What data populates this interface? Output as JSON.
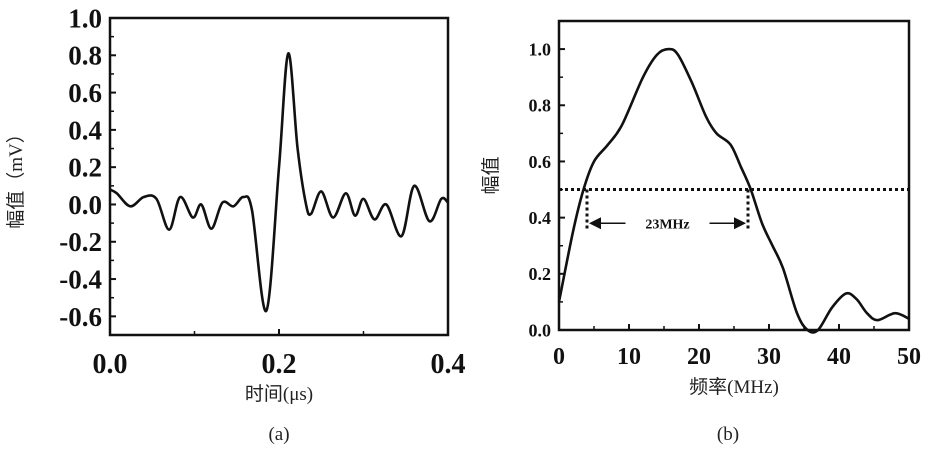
{
  "chart_data": [
    {
      "type": "line",
      "panel_label": "(a)",
      "xlabel": "时间(μs)",
      "ylabel": "幅值（mV）",
      "xlim": [
        0,
        0.4
      ],
      "ylim": [
        -0.7,
        1.0
      ],
      "xticks": [
        0.0,
        0.2,
        0.4
      ],
      "xtick_labels": [
        "0.0",
        "0.2",
        "0.4"
      ],
      "yticks": [
        1.0,
        0.8,
        0.6,
        0.4,
        0.2,
        0.0,
        -0.2,
        -0.4,
        -0.6
      ],
      "ytick_labels": [
        "1.0",
        "0.8",
        "0.6",
        "0.4",
        "0.2",
        "0.0",
        "-0.2",
        "-0.4",
        "-0.6"
      ],
      "grid": false,
      "series": [
        {
          "name": "signal",
          "x": [
            0,
            0.008,
            0.024,
            0.04,
            0.055,
            0.07,
            0.083,
            0.098,
            0.108,
            0.12,
            0.133,
            0.146,
            0.158,
            0.168,
            0.185,
            0.2,
            0.211,
            0.222,
            0.232,
            0.238,
            0.25,
            0.264,
            0.279,
            0.29,
            0.3,
            0.313,
            0.327,
            0.345,
            0.36,
            0.378,
            0.392,
            0.4
          ],
          "y": [
            0.08,
            0.06,
            -0.01,
            0.04,
            0.03,
            -0.135,
            0.04,
            -0.07,
            0.0,
            -0.13,
            0.01,
            -0.01,
            0.04,
            -0.03,
            -0.57,
            0.2,
            0.81,
            0.3,
            0.0,
            -0.05,
            0.07,
            -0.07,
            0.06,
            -0.06,
            0.03,
            -0.08,
            0.0,
            -0.17,
            0.1,
            -0.09,
            0.03,
            0.01
          ]
        }
      ]
    },
    {
      "type": "line",
      "panel_label": "(b)",
      "xlabel": "频率(MHz)",
      "ylabel": "幅值",
      "xlim": [
        0,
        50
      ],
      "ylim": [
        0,
        1.1
      ],
      "xticks": [
        0,
        10,
        20,
        30,
        40,
        50
      ],
      "xtick_labels": [
        "0",
        "10",
        "20",
        "30",
        "40",
        "50"
      ],
      "yticks": [
        0.0,
        0.2,
        0.4,
        0.6,
        0.8,
        1.0
      ],
      "ytick_labels": [
        "0.0",
        "0.2",
        "0.4",
        "0.6",
        "0.8",
        "1.0"
      ],
      "grid": false,
      "series": [
        {
          "name": "spectrum",
          "x": [
            0,
            2,
            3.5,
            5,
            7,
            9,
            12,
            14,
            15.7,
            17,
            19,
            21,
            22.5,
            24.5,
            26,
            27.4,
            29,
            30.5,
            32,
            34,
            35.5,
            37,
            39,
            41,
            42.5,
            44,
            45.5,
            48,
            50
          ],
          "y": [
            0.1,
            0.35,
            0.5,
            0.6,
            0.66,
            0.73,
            0.9,
            0.98,
            1.0,
            0.98,
            0.88,
            0.76,
            0.7,
            0.66,
            0.58,
            0.5,
            0.38,
            0.3,
            0.22,
            0.06,
            0.0,
            0.0,
            0.08,
            0.13,
            0.11,
            0.06,
            0.035,
            0.06,
            0.04
          ]
        }
      ],
      "reference_line": {
        "y": 0.5,
        "style": "dotted"
      },
      "annotation": {
        "text": "23MHz",
        "x_start": 4,
        "x_end": 27,
        "y": 0.38
      }
    }
  ]
}
